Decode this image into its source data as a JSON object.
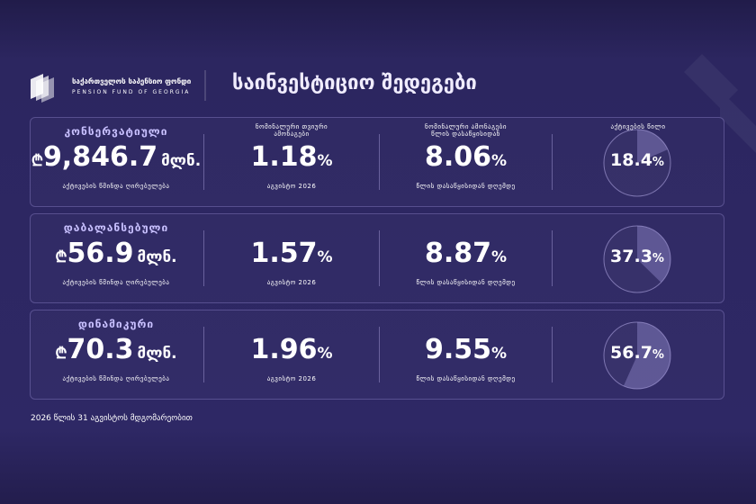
{
  "header": {
    "org_name": "საქართველოს საპენსიო ფონდი",
    "org_name_en": "PENSION FUND OF GEORGIA",
    "title": "საინვესტიციო შედეგები"
  },
  "columns": {
    "monthly": "ნომინალური თვიური ამონაგები",
    "ytd": "ნომინალური ამონაგები წლის დასაწყისიდან",
    "share": "აქტივების წილი"
  },
  "currency": "₾",
  "million": "მლნ.",
  "percent": "%",
  "assets_caption": "აქტივების წმინდა ღირებულება",
  "monthly_caption": "აგვისტო 2026",
  "ytd_caption": "წლის დასაწყისიდან დღემდე",
  "rows": [
    {
      "name": "კონსერვატიული",
      "assets": "9,846.7",
      "monthly": 1.18,
      "ytd": 8.06,
      "share": 18.4
    },
    {
      "name": "დაბალანსებული",
      "assets": "56.9",
      "monthly": 1.57,
      "ytd": 8.87,
      "share": 37.3
    },
    {
      "name": "დინამიკური",
      "assets": "70.3",
      "monthly": 1.96,
      "ytd": 9.55,
      "share": 56.7
    }
  ],
  "footer": "2026 წლის 31 აგვისტოს მდგომარეობით"
}
